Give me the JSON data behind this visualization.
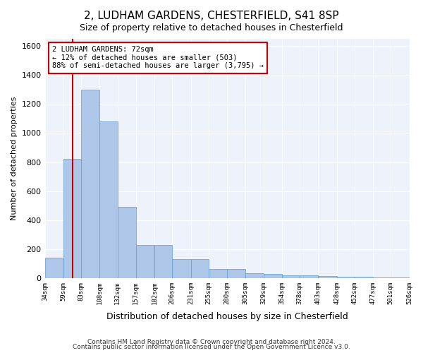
{
  "title1": "2, LUDHAM GARDENS, CHESTERFIELD, S41 8SP",
  "title2": "Size of property relative to detached houses in Chesterfield",
  "xlabel": "Distribution of detached houses by size in Chesterfield",
  "ylabel": "Number of detached properties",
  "footer1": "Contains HM Land Registry data © Crown copyright and database right 2024.",
  "footer2": "Contains public sector information licensed under the Open Government Licence v3.0.",
  "annotation_line1": "2 LUDHAM GARDENS: 72sqm",
  "annotation_line2": "← 12% of detached houses are smaller (503)",
  "annotation_line3": "88% of semi-detached houses are larger (3,795) →",
  "bar_edges": [
    34,
    59,
    83,
    108,
    132,
    157,
    182,
    206,
    231,
    255,
    280,
    305,
    329,
    354,
    378,
    403,
    428,
    452,
    477,
    501,
    526
  ],
  "bar_heights": [
    140,
    820,
    1300,
    1080,
    490,
    230,
    230,
    130,
    130,
    60,
    60,
    35,
    30,
    20,
    20,
    15,
    10,
    8,
    5,
    5
  ],
  "bar_color": "#aec6e8",
  "bar_edge_color": "#5a9fd4",
  "red_line_x": 72,
  "ylim": [
    0,
    1650
  ],
  "yticks": [
    0,
    200,
    400,
    600,
    800,
    1000,
    1200,
    1400,
    1600
  ],
  "bg_color": "#eef2fb",
  "annotation_box_color": "#ffffff",
  "annotation_box_edge": "#cc0000",
  "red_line_color": "#cc0000"
}
